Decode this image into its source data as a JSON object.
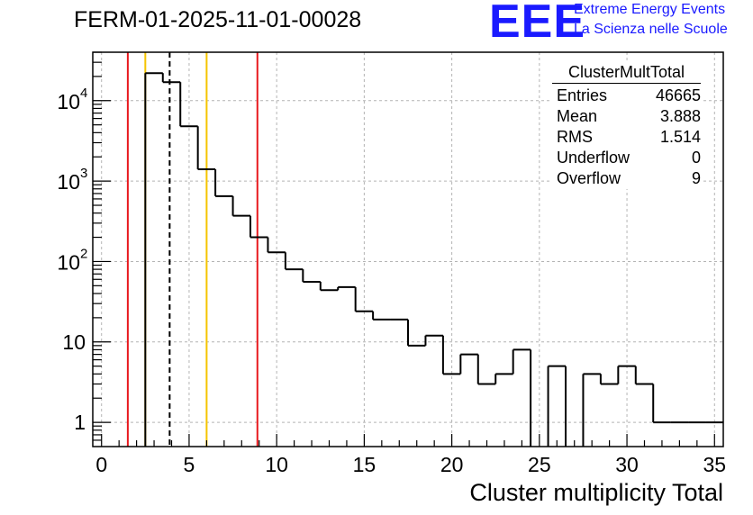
{
  "header": {
    "title": "FERM-01-2025-11-01-00028",
    "logo_text": "EEE",
    "brand_line1": "Extreme Energy Events",
    "brand_line2": "La Scienza nelle Scuole"
  },
  "stats_box": {
    "title": "ClusterMultTotal",
    "rows": [
      {
        "label": "Entries",
        "value": "46665"
      },
      {
        "label": "Mean",
        "value": "3.888"
      },
      {
        "label": "RMS",
        "value": "1.514"
      },
      {
        "label": "Underflow",
        "value": "0"
      },
      {
        "label": "Overflow",
        "value": "9"
      }
    ]
  },
  "chart_data": {
    "type": "histogram",
    "title": "FERM-01-2025-11-01-00028",
    "xlabel": "Cluster multiplicity Total",
    "ylabel": "",
    "xlim": [
      -0.5,
      35.5
    ],
    "ylim": [
      0.5,
      40000
    ],
    "yscale": "log",
    "grid": true,
    "bin_width": 1,
    "bins": [
      {
        "x": 0,
        "y": 0
      },
      {
        "x": 1,
        "y": 0
      },
      {
        "x": 2,
        "y": 0
      },
      {
        "x": 3,
        "y": 22000
      },
      {
        "x": 4,
        "y": 17000
      },
      {
        "x": 5,
        "y": 4800
      },
      {
        "x": 6,
        "y": 1400
      },
      {
        "x": 7,
        "y": 650
      },
      {
        "x": 8,
        "y": 370
      },
      {
        "x": 9,
        "y": 200
      },
      {
        "x": 10,
        "y": 130
      },
      {
        "x": 11,
        "y": 80
      },
      {
        "x": 12,
        "y": 56
      },
      {
        "x": 13,
        "y": 44
      },
      {
        "x": 14,
        "y": 48
      },
      {
        "x": 15,
        "y": 24
      },
      {
        "x": 16,
        "y": 19
      },
      {
        "x": 17,
        "y": 19
      },
      {
        "x": 18,
        "y": 9
      },
      {
        "x": 19,
        "y": 12
      },
      {
        "x": 20,
        "y": 4
      },
      {
        "x": 21,
        "y": 7
      },
      {
        "x": 22,
        "y": 3
      },
      {
        "x": 23,
        "y": 4
      },
      {
        "x": 24,
        "y": 8
      },
      {
        "x": 25,
        "y": 0
      },
      {
        "x": 26,
        "y": 5
      },
      {
        "x": 27,
        "y": 0
      },
      {
        "x": 28,
        "y": 4
      },
      {
        "x": 29,
        "y": 3
      },
      {
        "x": 30,
        "y": 5
      },
      {
        "x": 31,
        "y": 3
      },
      {
        "x": 32,
        "y": 1
      },
      {
        "x": 33,
        "y": 1
      },
      {
        "x": 34,
        "y": 1
      },
      {
        "x": 35,
        "y": 1
      }
    ],
    "x_ticks": [
      "0",
      "5",
      "10",
      "15",
      "20",
      "25",
      "30",
      "35"
    ],
    "y_ticks": [
      {
        "value": 1,
        "label": "1"
      },
      {
        "value": 10,
        "label": "10"
      },
      {
        "value": 100,
        "label": "10",
        "exp": "2"
      },
      {
        "value": 1000,
        "label": "10",
        "exp": "3"
      },
      {
        "value": 10000,
        "label": "10",
        "exp": "4"
      }
    ],
    "vertical_lines": [
      {
        "x": 1.5,
        "color": "#e8191e",
        "style": "solid"
      },
      {
        "x": 2.5,
        "color": "#f5c400",
        "style": "solid"
      },
      {
        "x": 3.89,
        "color": "#000000",
        "style": "dashed"
      },
      {
        "x": 6.0,
        "color": "#f5c400",
        "style": "solid"
      },
      {
        "x": 8.9,
        "color": "#e8191e",
        "style": "solid"
      }
    ]
  },
  "colors": {
    "brand": "#1a1aff",
    "grid": "#b4b4b4",
    "histogram": "#000000"
  }
}
